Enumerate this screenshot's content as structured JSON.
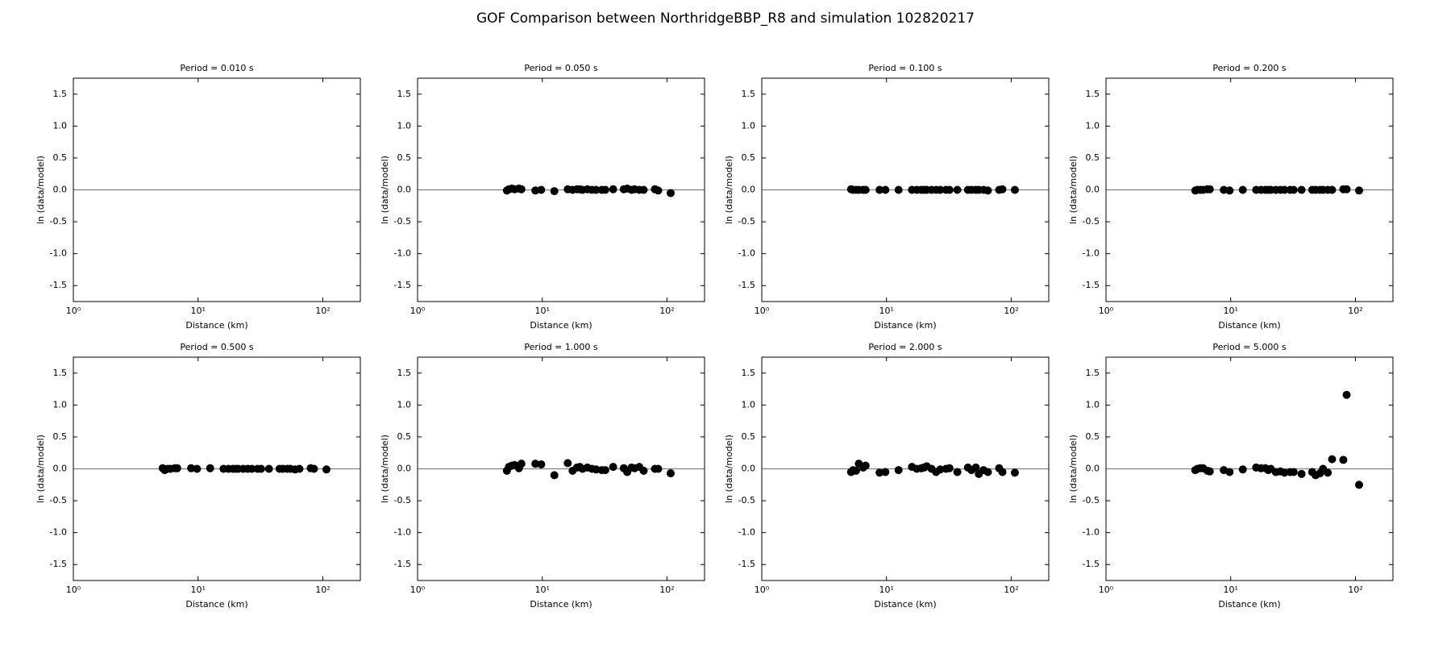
{
  "title": "GOF Comparison between NorthridgeBBP_R8 and simulation 102820217",
  "chart_data": [
    {
      "type": "scatter",
      "title": "Period = 0.010 s",
      "xlabel": "Distance (km)",
      "ylabel": "ln (data/model)",
      "xscale": "log",
      "color": "#000000",
      "hline": 0,
      "hline_color": "#808080",
      "xlim": [
        1,
        200
      ],
      "ylim": [
        -1.75,
        1.75
      ],
      "xticks": [
        {
          "value": 1,
          "label": "10⁰"
        },
        {
          "value": 10,
          "label": "10¹"
        },
        {
          "value": 100,
          "label": "10²"
        }
      ],
      "yticks": [
        -1.5,
        {
          "value": -1,
          "label": "-1.0"
        },
        -0.5,
        {
          "value": 0,
          "label": "0.0"
        },
        0.5,
        {
          "value": 1,
          "label": "1.0"
        },
        1.5
      ],
      "x": [],
      "values": []
    },
    {
      "type": "scatter",
      "title": "Period = 0.050 s",
      "xlabel": "Distance (km)",
      "ylabel": "ln (data/model)",
      "xscale": "log",
      "color": "#000000",
      "hline": 0,
      "hline_color": "#808080",
      "xlim": [
        1,
        200
      ],
      "ylim": [
        -1.75,
        1.75
      ],
      "xticks": [
        {
          "value": 1,
          "label": "10⁰"
        },
        {
          "value": 10,
          "label": "10¹"
        },
        {
          "value": 100,
          "label": "10²"
        }
      ],
      "yticks": [
        -1.5,
        {
          "value": -1,
          "label": "-1.0"
        },
        -0.5,
        {
          "value": 0,
          "label": "0.0"
        },
        0.5,
        {
          "value": 1,
          "label": "1.0"
        },
        1.5
      ],
      "x": [
        5.2,
        5.4,
        5.7,
        6.0,
        6.5,
        6.8,
        8.8,
        9.8,
        12.5,
        16,
        17.5,
        19,
        20,
        21,
        23,
        25,
        27,
        30,
        32,
        37,
        45,
        48,
        52,
        55,
        60,
        65,
        80,
        85,
        107
      ],
      "values": [
        -0.01,
        0.01,
        0.02,
        0.01,
        0.02,
        0.01,
        -0.01,
        0.0,
        -0.02,
        0.01,
        0.0,
        0.01,
        0.01,
        0.0,
        0.01,
        0.0,
        0.0,
        0.0,
        0.0,
        0.01,
        0.01,
        0.02,
        0.0,
        0.01,
        0.0,
        0.0,
        0.01,
        -0.01,
        -0.05
      ]
    },
    {
      "type": "scatter",
      "title": "Period = 0.100 s",
      "xlabel": "Distance (km)",
      "ylabel": "ln (data/model)",
      "xscale": "log",
      "color": "#000000",
      "hline": 0,
      "hline_color": "#808080",
      "xlim": [
        1,
        200
      ],
      "ylim": [
        -1.75,
        1.75
      ],
      "xticks": [
        {
          "value": 1,
          "label": "10⁰"
        },
        {
          "value": 10,
          "label": "10¹"
        },
        {
          "value": 100,
          "label": "10²"
        }
      ],
      "yticks": [
        -1.5,
        {
          "value": -1,
          "label": "-1.0"
        },
        -0.5,
        {
          "value": 0,
          "label": "0.0"
        },
        0.5,
        {
          "value": 1,
          "label": "1.0"
        },
        1.5
      ],
      "x": [
        5.2,
        5.4,
        5.7,
        6.0,
        6.5,
        6.8,
        8.8,
        9.8,
        12.5,
        16,
        17.5,
        19,
        20,
        21,
        23,
        25,
        27,
        30,
        32,
        37,
        45,
        48,
        52,
        55,
        60,
        65,
        80,
        85,
        107
      ],
      "values": [
        0.01,
        0.0,
        0.0,
        0.0,
        0.0,
        0.0,
        0.0,
        0.0,
        0.0,
        0.0,
        0.0,
        0.0,
        0.0,
        0.0,
        0.0,
        0.0,
        0.0,
        0.0,
        0.0,
        0.0,
        0.0,
        0.0,
        0.0,
        0.0,
        0.0,
        -0.01,
        0.0,
        0.01,
        0.0
      ]
    },
    {
      "type": "scatter",
      "title": "Period = 0.200 s",
      "xlabel": "Distance (km)",
      "ylabel": "ln (data/model)",
      "xscale": "log",
      "color": "#000000",
      "hline": 0,
      "hline_color": "#808080",
      "xlim": [
        1,
        200
      ],
      "ylim": [
        -1.75,
        1.75
      ],
      "xticks": [
        {
          "value": 1,
          "label": "10⁰"
        },
        {
          "value": 10,
          "label": "10¹"
        },
        {
          "value": 100,
          "label": "10²"
        }
      ],
      "yticks": [
        -1.5,
        {
          "value": -1,
          "label": "-1.0"
        },
        -0.5,
        {
          "value": 0,
          "label": "0.0"
        },
        0.5,
        {
          "value": 1,
          "label": "1.0"
        },
        1.5
      ],
      "x": [
        5.2,
        5.4,
        5.7,
        6.0,
        6.5,
        6.8,
        8.8,
        9.8,
        12.5,
        16,
        17.5,
        19,
        20,
        21,
        23,
        25,
        27,
        30,
        32,
        37,
        45,
        48,
        52,
        55,
        60,
        65,
        80,
        85,
        107
      ],
      "values": [
        -0.01,
        0.0,
        0.0,
        0.0,
        0.01,
        0.01,
        0.0,
        -0.01,
        0.0,
        0.0,
        0.0,
        0.0,
        0.0,
        0.0,
        0.0,
        0.0,
        0.0,
        0.0,
        0.0,
        0.0,
        0.0,
        0.0,
        0.0,
        0.0,
        0.0,
        0.0,
        0.01,
        0.01,
        -0.01
      ]
    },
    {
      "type": "scatter",
      "title": "Period = 0.500 s",
      "xlabel": "Distance (km)",
      "ylabel": "ln (data/model)",
      "xscale": "log",
      "color": "#000000",
      "hline": 0,
      "hline_color": "#808080",
      "xlim": [
        1,
        200
      ],
      "ylim": [
        -1.75,
        1.75
      ],
      "xticks": [
        {
          "value": 1,
          "label": "10⁰"
        },
        {
          "value": 10,
          "label": "10¹"
        },
        {
          "value": 100,
          "label": "10²"
        }
      ],
      "yticks": [
        -1.5,
        {
          "value": -1,
          "label": "-1.0"
        },
        -0.5,
        {
          "value": 0,
          "label": "0.0"
        },
        0.5,
        {
          "value": 1,
          "label": "1.0"
        },
        1.5
      ],
      "x": [
        5.2,
        5.4,
        5.7,
        6.0,
        6.5,
        6.8,
        8.8,
        9.8,
        12.5,
        16,
        17.5,
        19,
        20,
        21,
        23,
        25,
        27,
        30,
        32,
        37,
        45,
        48,
        52,
        55,
        60,
        65,
        80,
        85,
        107
      ],
      "values": [
        0.01,
        -0.02,
        0.0,
        0.0,
        0.01,
        0.01,
        0.01,
        0.0,
        0.01,
        0.0,
        0.0,
        0.0,
        0.0,
        0.0,
        0.0,
        0.0,
        0.0,
        0.0,
        0.0,
        0.0,
        0.0,
        0.0,
        0.0,
        0.0,
        -0.01,
        0.0,
        0.01,
        0.0,
        -0.01
      ]
    },
    {
      "type": "scatter",
      "title": "Period = 1.000 s",
      "xlabel": "Distance (km)",
      "ylabel": "ln (data/model)",
      "xscale": "log",
      "color": "#000000",
      "hline": 0,
      "hline_color": "#808080",
      "xlim": [
        1,
        200
      ],
      "ylim": [
        -1.75,
        1.75
      ],
      "xticks": [
        {
          "value": 1,
          "label": "10⁰"
        },
        {
          "value": 10,
          "label": "10¹"
        },
        {
          "value": 100,
          "label": "10²"
        }
      ],
      "yticks": [
        -1.5,
        {
          "value": -1,
          "label": "-1.0"
        },
        -0.5,
        {
          "value": 0,
          "label": "0.0"
        },
        0.5,
        {
          "value": 1,
          "label": "1.0"
        },
        1.5
      ],
      "x": [
        5.2,
        5.4,
        5.7,
        6.0,
        6.5,
        6.8,
        8.8,
        9.8,
        12.5,
        16,
        17.5,
        19,
        20,
        21,
        23,
        25,
        27,
        30,
        32,
        37,
        45,
        48,
        52,
        55,
        60,
        65,
        80,
        85,
        107
      ],
      "values": [
        -0.03,
        0.03,
        0.05,
        0.06,
        0.01,
        0.08,
        0.08,
        0.07,
        -0.1,
        0.09,
        -0.03,
        0.02,
        0.03,
        0.0,
        0.02,
        0.0,
        -0.01,
        -0.02,
        -0.02,
        0.03,
        0.01,
        -0.05,
        0.02,
        0.01,
        0.03,
        -0.03,
        0.0,
        0.0,
        -0.07
      ]
    },
    {
      "type": "scatter",
      "title": "Period = 2.000 s",
      "xlabel": "Distance (km)",
      "ylabel": "ln (data/model)",
      "xscale": "log",
      "color": "#000000",
      "hline": 0,
      "hline_color": "#808080",
      "xlim": [
        1,
        200
      ],
      "ylim": [
        -1.75,
        1.75
      ],
      "xticks": [
        {
          "value": 1,
          "label": "10⁰"
        },
        {
          "value": 10,
          "label": "10¹"
        },
        {
          "value": 100,
          "label": "10²"
        }
      ],
      "yticks": [
        -1.5,
        {
          "value": -1,
          "label": "-1.0"
        },
        -0.5,
        {
          "value": 0,
          "label": "0.0"
        },
        0.5,
        {
          "value": 1,
          "label": "1.0"
        },
        1.5
      ],
      "x": [
        5.2,
        5.4,
        5.7,
        6.0,
        6.5,
        6.8,
        8.8,
        9.8,
        12.5,
        16,
        17.5,
        19,
        20,
        21,
        23,
        25,
        27,
        30,
        32,
        37,
        45,
        48,
        52,
        55,
        60,
        65,
        80,
        85,
        107
      ],
      "values": [
        -0.05,
        -0.02,
        -0.03,
        0.08,
        0.02,
        0.05,
        -0.06,
        -0.05,
        -0.02,
        0.03,
        0.0,
        0.01,
        0.02,
        0.04,
        0.0,
        -0.05,
        -0.01,
        0.0,
        0.01,
        -0.05,
        0.02,
        -0.02,
        0.02,
        -0.08,
        -0.02,
        -0.05,
        0.01,
        -0.05,
        -0.06
      ]
    },
    {
      "type": "scatter",
      "title": "Period = 5.000 s",
      "xlabel": "Distance (km)",
      "ylabel": "ln (data/model)",
      "xscale": "log",
      "color": "#000000",
      "hline": 0,
      "hline_color": "#808080",
      "xlim": [
        1,
        200
      ],
      "ylim": [
        -1.75,
        1.75
      ],
      "xticks": [
        {
          "value": 1,
          "label": "10⁰"
        },
        {
          "value": 10,
          "label": "10¹"
        },
        {
          "value": 100,
          "label": "10²"
        }
      ],
      "yticks": [
        -1.5,
        {
          "value": -1,
          "label": "-1.0"
        },
        -0.5,
        {
          "value": 0,
          "label": "0.0"
        },
        0.5,
        {
          "value": 1,
          "label": "1.0"
        },
        1.5
      ],
      "x": [
        5.2,
        5.4,
        5.7,
        6.0,
        6.5,
        6.8,
        8.8,
        9.8,
        12.5,
        16,
        17.5,
        19,
        20,
        21,
        23,
        25,
        27,
        30,
        32,
        37,
        45,
        48,
        52,
        55,
        60,
        65,
        80,
        85,
        107
      ],
      "values": [
        -0.02,
        0.0,
        0.01,
        0.01,
        -0.03,
        -0.04,
        -0.02,
        -0.05,
        -0.01,
        0.02,
        0.01,
        0.01,
        -0.02,
        0.0,
        -0.05,
        -0.04,
        -0.06,
        -0.05,
        -0.05,
        -0.08,
        -0.05,
        -0.1,
        -0.07,
        0.0,
        -0.06,
        0.15,
        0.14,
        1.16,
        -0.25
      ]
    }
  ]
}
